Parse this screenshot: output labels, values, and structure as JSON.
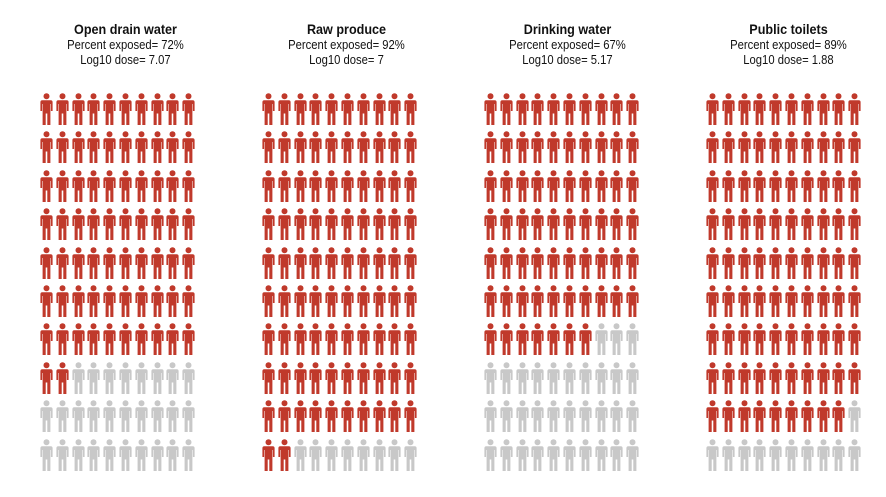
{
  "colors": {
    "exposed": "#c0392b",
    "unexposed": "#c8c8c8"
  },
  "icon": "person-icon",
  "chart_data": [
    {
      "type": "pictogram",
      "title": "Open drain water",
      "percent_label": "Percent exposed= 72%",
      "dose_label": "Log10 dose= 7.07",
      "percent_exposed": 72,
      "log10_dose": 7.07,
      "total_icons": 100
    },
    {
      "type": "pictogram",
      "title": "Raw produce",
      "percent_label": "Percent exposed= 92%",
      "dose_label": "Log10 dose= 7",
      "percent_exposed": 92,
      "log10_dose": 7,
      "total_icons": 100
    },
    {
      "type": "pictogram",
      "title": "Drinking water",
      "percent_label": "Percent exposed= 67%",
      "dose_label": "Log10 dose= 5.17",
      "percent_exposed": 67,
      "log10_dose": 5.17,
      "total_icons": 100
    },
    {
      "type": "pictogram",
      "title": "Public toilets",
      "percent_label": "Percent exposed= 89%",
      "dose_label": "Log10 dose= 1.88",
      "percent_exposed": 89,
      "log10_dose": 1.88,
      "total_icons": 100
    }
  ]
}
